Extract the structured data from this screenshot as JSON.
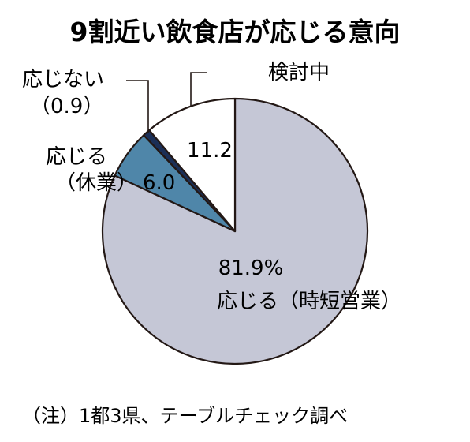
{
  "chart_data": {
    "type": "pie",
    "title": "9割近い飲食店が応じる意向",
    "slices": [
      {
        "label": "応じる（時短営業）",
        "value": 81.9,
        "value_text": "81.9%",
        "color": "#c5c7d6"
      },
      {
        "label_lines": [
          "応じる",
          "（休業）"
        ],
        "value": 6.0,
        "value_text": "6.0",
        "color": "#4f86a9"
      },
      {
        "label_lines": [
          "応じない",
          "（0.9）"
        ],
        "value": 0.9,
        "value_text": "",
        "color": "#1b2f57"
      },
      {
        "label": "検討中",
        "value": 11.2,
        "value_text": "11.2",
        "color": "#ffffff"
      }
    ],
    "note": "（注）1都3県、テーブルチェック調べ"
  }
}
